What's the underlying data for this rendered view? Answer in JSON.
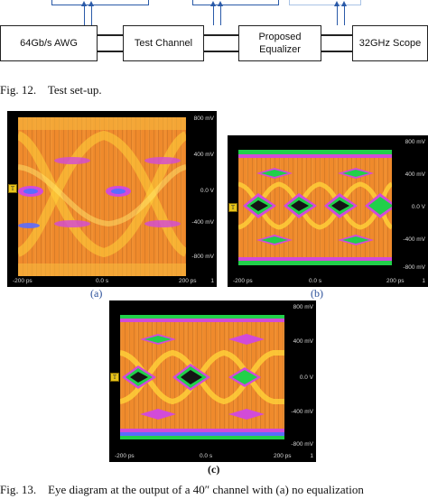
{
  "diagram": {
    "blocks": [
      {
        "id": "awg",
        "label": "64Gb/s AWG"
      },
      {
        "id": "channel",
        "label": "Test Channel"
      },
      {
        "id": "equalizer",
        "label": "Proposed\nEqualizer"
      },
      {
        "id": "scope",
        "label": "32GHz Scope"
      }
    ]
  },
  "figure12": {
    "caption": "Fig. 12.    Test set-up."
  },
  "panels": [
    {
      "id": "a",
      "label": "(a)",
      "y_ticks": [
        "800 mV",
        "400 mV",
        "0.0 V",
        "-400 mV",
        "-800 mV"
      ],
      "x_ticks": [
        "-200 ps",
        "0.0 s",
        "200 ps"
      ],
      "corner": "1"
    },
    {
      "id": "b",
      "label": "(b)",
      "y_ticks": [
        "800 mV",
        "400 mV",
        "0.0 V",
        "-400 mV",
        "-800 mV"
      ],
      "x_ticks": [
        "-200 ps",
        "0.0 s",
        "200 ps"
      ],
      "corner": "1"
    },
    {
      "id": "c",
      "label": "(c)",
      "y_ticks": [
        "800 mV",
        "400 mV",
        "0.0 V",
        "-400 mV",
        "-800 mV"
      ],
      "x_ticks": [
        "-200 ps",
        "0.0 s",
        "200 ps"
      ],
      "corner": "1"
    }
  ],
  "figure13": {
    "caption": "Fig. 13.    Eye diagram at the output of a 40″ channel with (a) no equalization"
  },
  "colors": {
    "eye_fill": "#ef8a2c",
    "eye_hot": "#ffd23a",
    "eye_edge_pink": "#d24bd8",
    "eye_edge_blue": "#5a6cff",
    "eye_green": "#21d04a",
    "marker": "#e8c41a"
  }
}
